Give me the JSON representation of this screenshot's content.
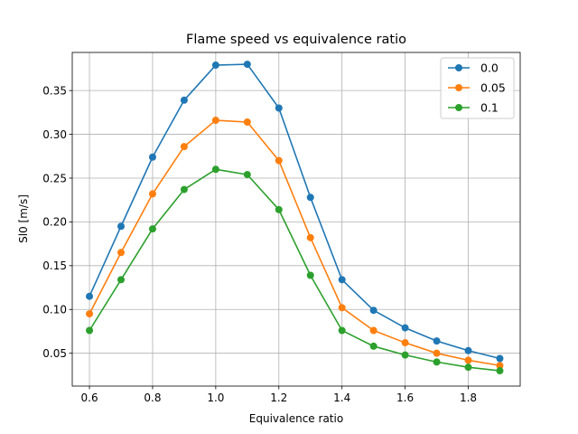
{
  "chart_data": {
    "type": "line",
    "title": "Flame speed vs equivalence ratio",
    "xlabel": "Equivalence ratio",
    "ylabel": "Sl0 [m/s]",
    "xlim": [
      0.5455,
      1.9645
    ],
    "ylim": [
      0.0125,
      0.3935
    ],
    "xticks": [
      0.6,
      0.8,
      1.0,
      1.2,
      1.4,
      1.6,
      1.8
    ],
    "xtick_labels": [
      "0.6",
      "0.8",
      "1.0",
      "1.2",
      "1.4",
      "1.6",
      "1.8"
    ],
    "yticks": [
      0.05,
      0.1,
      0.15,
      0.2,
      0.25,
      0.3,
      0.35
    ],
    "ytick_labels": [
      "0.05",
      "0.10",
      "0.15",
      "0.20",
      "0.25",
      "0.30",
      "0.35"
    ],
    "grid": true,
    "legend_position": "top-right",
    "x": [
      0.6,
      0.7,
      0.8,
      0.9,
      1.0,
      1.1,
      1.2,
      1.3,
      1.4,
      1.5,
      1.6,
      1.7,
      1.8,
      1.9
    ],
    "series": [
      {
        "name": "0.0",
        "color": "#1f77b4",
        "values": [
          0.115,
          0.195,
          0.274,
          0.339,
          0.379,
          0.38,
          0.33,
          0.228,
          0.134,
          0.099,
          0.079,
          0.064,
          0.053,
          0.044
        ]
      },
      {
        "name": "0.05",
        "color": "#ff7f0e",
        "values": [
          0.095,
          0.165,
          0.232,
          0.286,
          0.316,
          0.314,
          0.27,
          0.182,
          0.102,
          0.076,
          0.062,
          0.05,
          0.042,
          0.036
        ]
      },
      {
        "name": "0.1",
        "color": "#2ca02c",
        "values": [
          0.076,
          0.134,
          0.192,
          0.237,
          0.26,
          0.254,
          0.214,
          0.139,
          0.076,
          0.058,
          0.048,
          0.04,
          0.034,
          0.03
        ]
      }
    ]
  }
}
